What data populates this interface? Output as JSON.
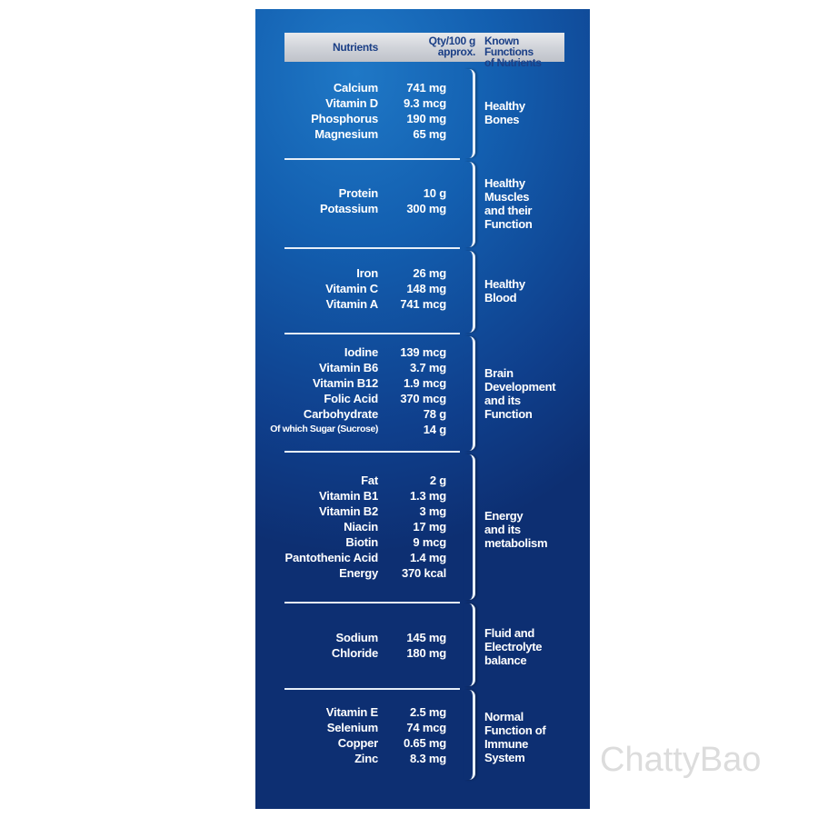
{
  "header": {
    "nutrients": "Nutrients",
    "qty_line1": "Qty/100 g",
    "qty_line2": "approx.",
    "functions_line1": "Known Functions",
    "functions_line2": "of Nutrients"
  },
  "groups": [
    {
      "function": "Healthy\nBones",
      "items": [
        {
          "name": "Calcium",
          "qty": "741 mg"
        },
        {
          "name": "Vitamin D",
          "qty": "9.3 mcg"
        },
        {
          "name": "Phosphorus",
          "qty": "190 mg"
        },
        {
          "name": "Magnesium",
          "qty": "65 mg"
        }
      ]
    },
    {
      "function": "Healthy\nMuscles\nand their\nFunction",
      "items": [
        {
          "name": "Protein",
          "qty": "10 g"
        },
        {
          "name": "Potassium",
          "qty": "300 mg"
        }
      ]
    },
    {
      "function": "Healthy\nBlood",
      "items": [
        {
          "name": "Iron",
          "qty": "26 mg"
        },
        {
          "name": "Vitamin C",
          "qty": "148 mg"
        },
        {
          "name": "Vitamin A",
          "qty": "741 mcg"
        }
      ]
    },
    {
      "function": "Brain\nDevelopment\nand its\nFunction",
      "items": [
        {
          "name": "Iodine",
          "qty": "139 mcg"
        },
        {
          "name": "Vitamin B6",
          "qty": "3.7 mg"
        },
        {
          "name": "Vitamin B12",
          "qty": "1.9 mcg"
        },
        {
          "name": "Folic Acid",
          "qty": "370 mcg"
        },
        {
          "name": "Carbohydrate",
          "qty": "78 g"
        },
        {
          "name": "Of which Sugar (Sucrose)",
          "qty": "14 g"
        }
      ]
    },
    {
      "function": "Energy\nand its\nmetabolism",
      "items": [
        {
          "name": "Fat",
          "qty": "2 g"
        },
        {
          "name": "Vitamin B1",
          "qty": "1.3 mg"
        },
        {
          "name": "Vitamin B2",
          "qty": "3 mg"
        },
        {
          "name": "Niacin",
          "qty": "17 mg"
        },
        {
          "name": "Biotin",
          "qty": "9 mcg"
        },
        {
          "name": "Pantothenic Acid",
          "qty": "1.4 mg"
        },
        {
          "name": "Energy",
          "qty": "370 kcal"
        }
      ]
    },
    {
      "function": "Fluid and\nElectrolyte\nbalance",
      "items": [
        {
          "name": "Sodium",
          "qty": "145 mg"
        },
        {
          "name": "Chloride",
          "qty": "180 mg"
        }
      ]
    },
    {
      "function": "Normal\nFunction of\nImmune\nSystem",
      "items": [
        {
          "name": "Vitamin E",
          "qty": "2.5 mg"
        },
        {
          "name": "Selenium",
          "qty": "74 mcg"
        },
        {
          "name": "Copper",
          "qty": "0.65 mg"
        },
        {
          "name": "Zinc",
          "qty": "8.3 mg"
        }
      ]
    }
  ],
  "watermark": "ChattyBao"
}
